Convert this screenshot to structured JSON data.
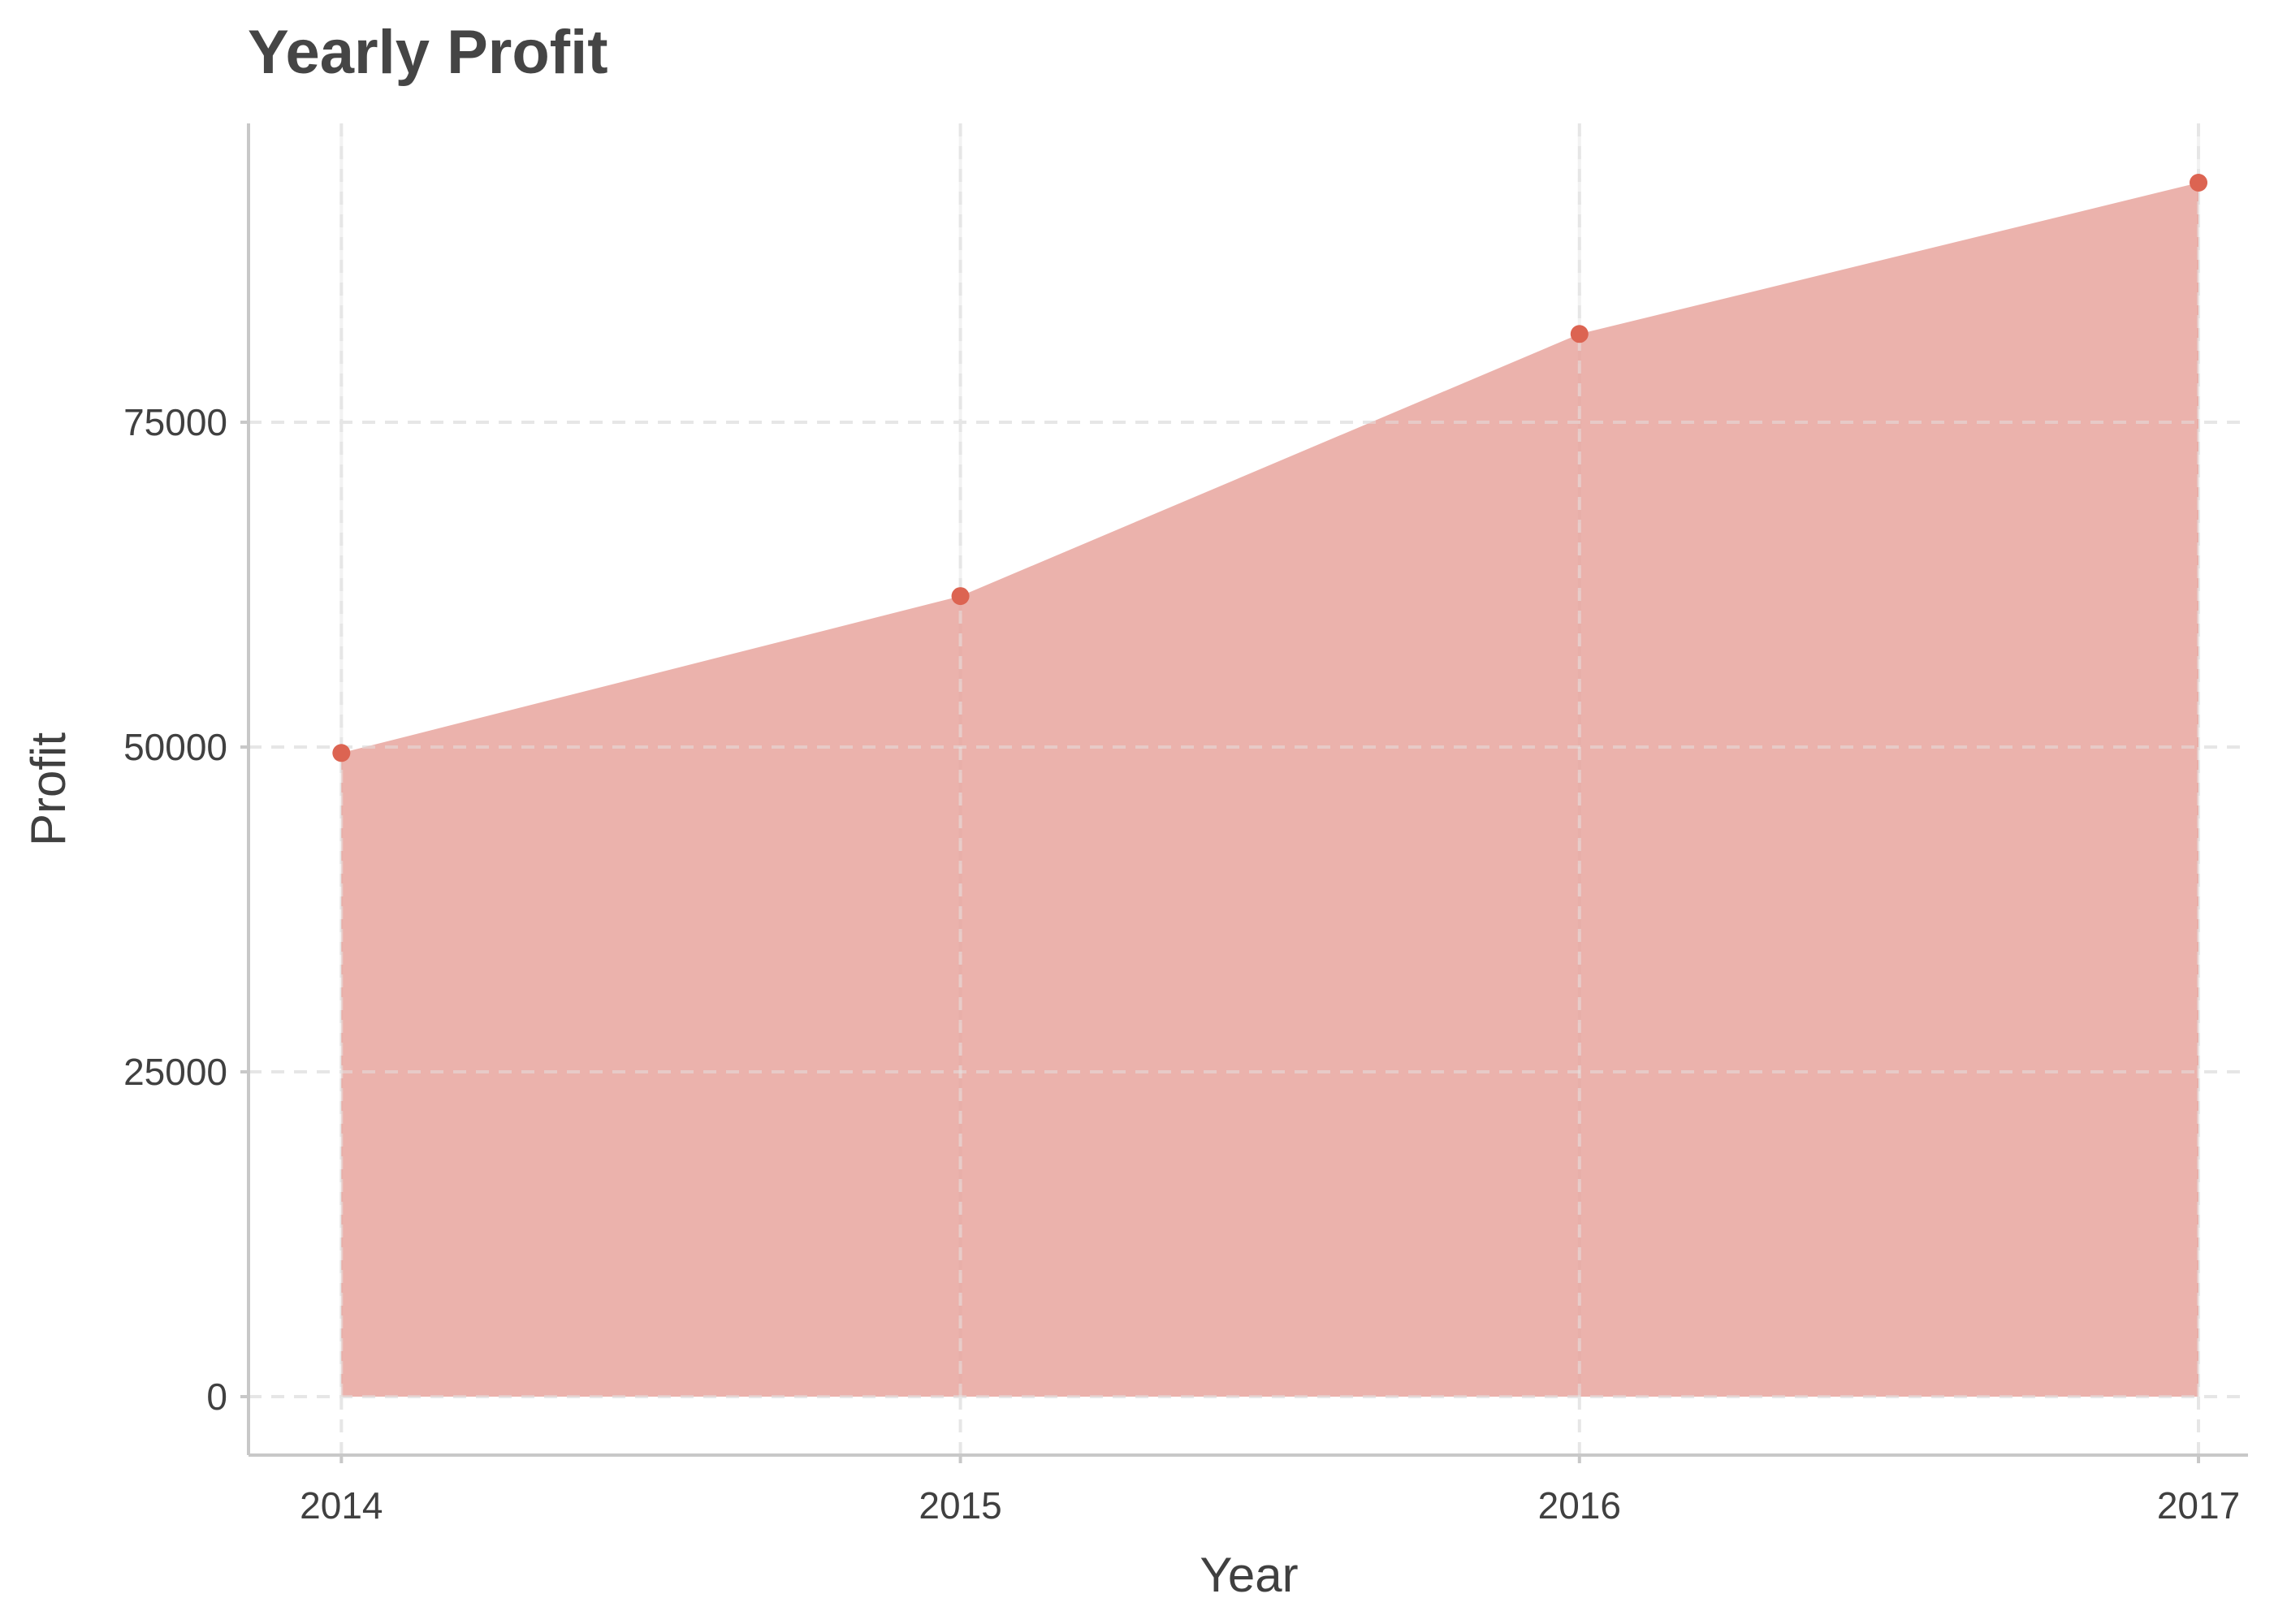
{
  "chart_data": {
    "type": "area",
    "title": "Yearly Profit",
    "xlabel": "Year",
    "ylabel": "Profit",
    "x": [
      2014,
      2015,
      2016,
      2017
    ],
    "xticks": [
      "2014",
      "2015",
      "2016",
      "2017"
    ],
    "yticks": [
      "0",
      "25000",
      "50000",
      "75000"
    ],
    "ytick_values": [
      0,
      25000,
      50000,
      75000
    ],
    "series": [
      {
        "name": "Profit",
        "values": [
          49544,
          61619,
          81795,
          93439
        ]
      }
    ],
    "ylim": [
      -4500,
      98000
    ],
    "xlim": [
      2013.85,
      2017.08
    ],
    "grid": true,
    "legend": "none",
    "colors": {
      "fill": "#E8A59E",
      "point": "#DC6452"
    }
  }
}
